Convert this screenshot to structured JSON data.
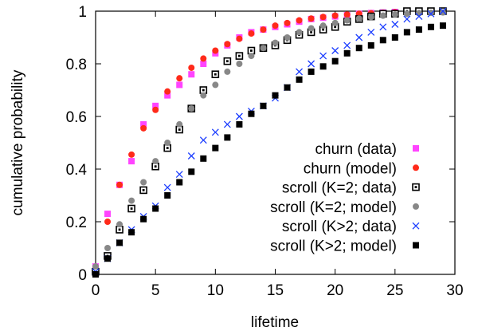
{
  "chart_data": {
    "type": "scatter",
    "title": "",
    "xlabel": "lifetime",
    "ylabel": "cumulative probability",
    "xlim": [
      0,
      30
    ],
    "ylim": [
      0,
      1
    ],
    "xticks": [
      "0",
      "5",
      "10",
      "15",
      "20",
      "25",
      "30"
    ],
    "yticks": [
      "0",
      "0.2",
      "0.4",
      "0.6",
      "0.8",
      "1"
    ],
    "grid": false,
    "legend_position": "bottom-right",
    "series": [
      {
        "name": "churn (data)",
        "marker": "filled-square",
        "color": "#ff44ff",
        "x": [
          0,
          1,
          2,
          3,
          4,
          5,
          6,
          7,
          8,
          9,
          10,
          11,
          12,
          13,
          14,
          15,
          16,
          17,
          18,
          19,
          20,
          21,
          22,
          23,
          24,
          25,
          26,
          27,
          28,
          29
        ],
        "y": [
          0.03,
          0.23,
          0.34,
          0.43,
          0.57,
          0.64,
          0.68,
          0.72,
          0.76,
          0.8,
          0.84,
          0.87,
          0.9,
          0.92,
          0.93,
          0.94,
          0.95,
          0.96,
          0.97,
          0.975,
          0.98,
          0.985,
          0.99,
          0.993,
          0.995,
          0.997,
          0.998,
          0.999,
          1.0,
          1.0
        ]
      },
      {
        "name": "churn (model)",
        "marker": "filled-circle",
        "color": "#ff2a1a",
        "x": [
          0,
          1,
          2,
          3,
          4,
          5,
          6,
          7,
          8,
          9,
          10,
          11,
          12,
          13,
          14,
          15,
          16,
          17,
          18,
          19,
          20,
          21,
          22,
          23,
          24,
          25,
          26,
          27,
          28,
          29
        ],
        "y": [
          0.0,
          0.2,
          0.34,
          0.455,
          0.555,
          0.625,
          0.695,
          0.745,
          0.785,
          0.82,
          0.85,
          0.875,
          0.895,
          0.915,
          0.93,
          0.945,
          0.955,
          0.965,
          0.972,
          0.978,
          0.983,
          0.987,
          0.99,
          0.992,
          0.994,
          0.996,
          0.997,
          0.998,
          0.999,
          0.999
        ]
      },
      {
        "name": "scroll (K=2; data)",
        "marker": "hollow-square",
        "color": "#000000",
        "x": [
          0,
          1,
          2,
          3,
          4,
          5,
          6,
          7,
          8,
          9,
          10,
          11,
          12,
          13,
          14,
          15,
          16,
          17,
          18,
          19,
          20,
          21,
          22,
          23,
          24,
          25,
          26,
          27,
          28,
          29
        ],
        "y": [
          0.01,
          0.07,
          0.17,
          0.25,
          0.32,
          0.41,
          0.48,
          0.55,
          0.63,
          0.7,
          0.76,
          0.81,
          0.83,
          0.85,
          0.86,
          0.87,
          0.89,
          0.91,
          0.92,
          0.93,
          0.94,
          0.96,
          0.97,
          0.98,
          0.99,
          0.99,
          1.0,
          1.0,
          1.0,
          1.0
        ]
      },
      {
        "name": "scroll (K=2; model)",
        "marker": "filled-circle",
        "color": "#888888",
        "x": [
          0,
          1,
          2,
          3,
          4,
          5,
          6,
          7,
          8,
          9,
          10,
          11,
          12,
          13,
          14,
          15,
          16,
          17,
          18,
          19,
          20,
          21,
          22,
          23,
          24,
          25,
          26,
          27,
          28,
          29
        ],
        "y": [
          0.03,
          0.1,
          0.19,
          0.28,
          0.35,
          0.43,
          0.5,
          0.57,
          0.63,
          0.68,
          0.72,
          0.77,
          0.8,
          0.83,
          0.86,
          0.88,
          0.9,
          0.92,
          0.935,
          0.945,
          0.955,
          0.965,
          0.972,
          0.978,
          0.983,
          0.987,
          0.99,
          0.992,
          0.994,
          0.995
        ]
      },
      {
        "name": "scroll (K>2; data)",
        "marker": "cross",
        "color": "#1a3cff",
        "x": [
          0,
          1,
          2,
          3,
          4,
          5,
          6,
          7,
          8,
          9,
          10,
          11,
          12,
          13,
          14,
          15,
          16,
          17,
          18,
          19,
          20,
          21,
          22,
          23,
          24,
          25,
          26,
          27,
          28,
          29
        ],
        "y": [
          0.01,
          0.06,
          0.12,
          0.17,
          0.22,
          0.26,
          0.33,
          0.38,
          0.45,
          0.51,
          0.54,
          0.57,
          0.6,
          0.62,
          0.64,
          0.67,
          0.71,
          0.77,
          0.8,
          0.83,
          0.85,
          0.87,
          0.9,
          0.92,
          0.94,
          0.95,
          0.97,
          0.98,
          0.99,
          1.0
        ]
      },
      {
        "name": "scroll (K>2; model)",
        "marker": "filled-square",
        "color": "#000000",
        "x": [
          0,
          1,
          2,
          3,
          4,
          5,
          6,
          7,
          8,
          9,
          10,
          11,
          12,
          13,
          14,
          15,
          16,
          17,
          18,
          19,
          20,
          21,
          22,
          23,
          24,
          25,
          26,
          27,
          28,
          29
        ],
        "y": [
          0.0,
          0.06,
          0.12,
          0.16,
          0.21,
          0.25,
          0.3,
          0.35,
          0.39,
          0.44,
          0.48,
          0.52,
          0.57,
          0.61,
          0.64,
          0.68,
          0.71,
          0.74,
          0.77,
          0.79,
          0.81,
          0.84,
          0.86,
          0.87,
          0.89,
          0.9,
          0.92,
          0.93,
          0.94,
          0.945
        ]
      }
    ]
  }
}
